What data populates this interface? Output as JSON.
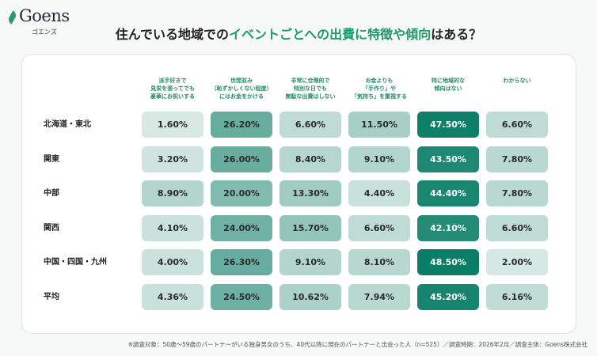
{
  "logo": {
    "text": "Goens",
    "sub": "ゴエンズ"
  },
  "title": {
    "pre": "住んでいる地域での",
    "highlight": "イベントごとへの出費に特徴や傾向",
    "post": "はある？"
  },
  "chart_data": {
    "type": "heatmap",
    "columns": [
      "派手好きで\n見栄を張ってでも\n豪華にお祝いする",
      "世間並み\n（恥ずかしくない程度）\nにはお金をかける",
      "非常に合理的で\n特別な日でも\n無駄な出費はしない",
      "お金よりも\n「手作り」や\n「気持ち」を重視する",
      "特に地域的な\n傾向はない",
      "わからない"
    ],
    "rows": [
      "北海道・東北",
      "関東",
      "中部",
      "関西",
      "中国・四国・九州",
      "平均"
    ],
    "values": [
      [
        1.6,
        26.2,
        6.6,
        11.5,
        47.5,
        6.6
      ],
      [
        3.2,
        26.0,
        8.4,
        9.1,
        43.5,
        7.8
      ],
      [
        8.9,
        20.0,
        13.3,
        4.4,
        44.4,
        7.8
      ],
      [
        4.1,
        24.0,
        15.7,
        6.6,
        42.1,
        6.6
      ],
      [
        4.0,
        26.3,
        9.1,
        8.1,
        48.5,
        2.0
      ],
      [
        4.36,
        24.5,
        10.62,
        7.94,
        45.2,
        6.16
      ]
    ],
    "unit": "%",
    "colors": {
      "low": "#e2eeea",
      "high": "#0a7d66"
    }
  },
  "footnote": "※調査対象：50歳〜59歳のパートナーがいる独身男女のうち、40代以降に現在のパートナーと出会った人（n=525）／調査時期：2026年2月／調査主体：Goens株式会社"
}
